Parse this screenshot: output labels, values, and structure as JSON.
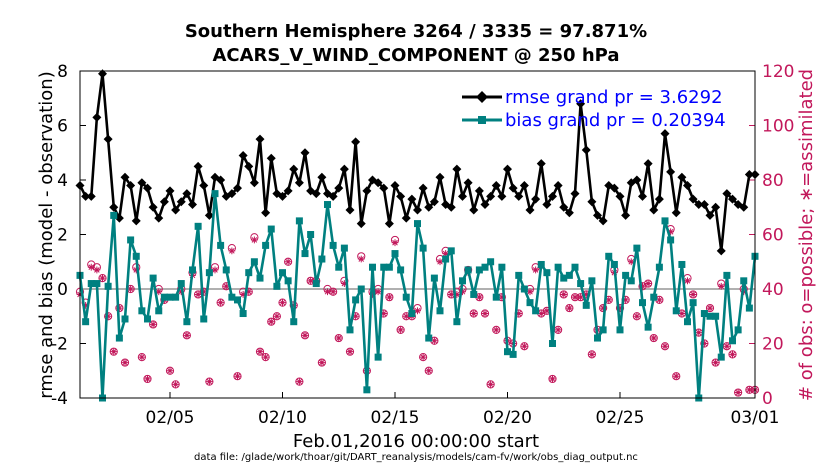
{
  "chart_data": {
    "type": "line",
    "title": "Southern Hemisphere 3264 / 3335 = 97.871%",
    "subtitle": "ACARS_V_WIND_COMPONENT @ 250 hPa",
    "xlabel": "Feb.01,2016 00:00:00 start",
    "ylabel": "rmse and bias (model - observation)",
    "y2label": "# of obs: o=possible; ∗=assimilated",
    "footnote": "data file: /glade/work/thoar/git/DART_reanalysis/models/cam-fv/work/obs_diag_output.nc",
    "xlim": [
      1,
      31
    ],
    "ylim": [
      -4,
      8
    ],
    "y2lim": [
      0,
      120
    ],
    "x_ticks": [
      5,
      10,
      15,
      20,
      25,
      31
    ],
    "x_tick_labels": [
      "02/05",
      "02/10",
      "02/15",
      "02/20",
      "02/25",
      "03/01"
    ],
    "y_ticks": [
      -4,
      -2,
      0,
      2,
      4,
      6,
      8
    ],
    "y_tick_labels": [
      "-4",
      "-2",
      "0",
      "2",
      "4",
      "6",
      "8"
    ],
    "y2_ticks": [
      0,
      20,
      40,
      60,
      80,
      100,
      120
    ],
    "y2_tick_labels": [
      "0",
      "20",
      "40",
      "60",
      "80",
      "100",
      "120"
    ],
    "x": [
      1.0,
      1.25,
      1.5,
      1.75,
      2.0,
      2.25,
      2.5,
      2.75,
      3.0,
      3.25,
      3.5,
      3.75,
      4.0,
      4.25,
      4.5,
      4.75,
      5.0,
      5.25,
      5.5,
      5.75,
      6.0,
      6.25,
      6.5,
      6.75,
      7.0,
      7.25,
      7.5,
      7.75,
      8.0,
      8.25,
      8.5,
      8.75,
      9.0,
      9.25,
      9.5,
      9.75,
      10.0,
      10.25,
      10.5,
      10.75,
      11.0,
      11.25,
      11.5,
      11.75,
      12.0,
      12.25,
      12.5,
      12.75,
      13.0,
      13.25,
      13.5,
      13.75,
      14.0,
      14.25,
      14.5,
      14.75,
      15.0,
      15.25,
      15.5,
      15.75,
      16.0,
      16.25,
      16.5,
      16.75,
      17.0,
      17.25,
      17.5,
      17.75,
      18.0,
      18.25,
      18.5,
      18.75,
      19.0,
      19.25,
      19.5,
      19.75,
      20.0,
      20.25,
      20.5,
      20.75,
      21.0,
      21.25,
      21.5,
      21.75,
      22.0,
      22.25,
      22.5,
      22.75,
      23.0,
      23.25,
      23.5,
      23.75,
      24.0,
      24.25,
      24.5,
      24.75,
      25.0,
      25.25,
      25.5,
      25.75,
      26.0,
      26.25,
      26.5,
      26.75,
      27.0,
      27.25,
      27.5,
      27.75,
      28.0,
      28.25,
      28.5,
      28.75,
      29.0,
      29.25,
      29.5,
      29.75,
      30.0,
      30.25,
      30.5,
      30.75,
      31.0
    ],
    "series": [
      {
        "name": "rmse grand pr = 3.6292",
        "color": "#000000",
        "marker": "diamond",
        "values": [
          3.8,
          3.4,
          3.4,
          6.3,
          7.9,
          5.5,
          3.0,
          2.6,
          4.1,
          3.8,
          2.5,
          3.9,
          3.7,
          3.0,
          2.6,
          3.2,
          3.6,
          2.9,
          3.2,
          3.5,
          3.1,
          4.5,
          3.8,
          2.7,
          4.1,
          4.0,
          3.4,
          3.5,
          3.7,
          4.9,
          4.5,
          3.9,
          5.5,
          2.8,
          4.8,
          3.5,
          3.4,
          3.6,
          4.4,
          3.9,
          5.0,
          3.6,
          3.5,
          4.1,
          3.5,
          3.4,
          3.7,
          4.4,
          2.9,
          5.4,
          2.4,
          3.6,
          4.0,
          3.9,
          3.7,
          2.4,
          3.8,
          3.4,
          2.6,
          3.3,
          2.9,
          3.7,
          3.0,
          3.2,
          4.1,
          3.1,
          3.0,
          4.4,
          3.4,
          3.9,
          2.9,
          3.6,
          3.1,
          3.4,
          3.8,
          3.4,
          4.4,
          3.7,
          3.4,
          3.8,
          2.9,
          3.3,
          4.6,
          3.1,
          3.4,
          3.8,
          3.0,
          2.8,
          3.5,
          6.8,
          5.1,
          3.2,
          2.7,
          2.5,
          3.8,
          3.7,
          3.4,
          2.7,
          3.9,
          4.0,
          3.4,
          4.6,
          2.9,
          3.3,
          5.7,
          4.3,
          2.8,
          4.1,
          3.8,
          3.3,
          3.1,
          3.1,
          2.7,
          3.0,
          1.4,
          3.5,
          3.3,
          3.1,
          3.0,
          4.2,
          4.2
        ]
      },
      {
        "name": "bias grand pr = 0.20394",
        "color": "#008080",
        "marker": "square",
        "values": [
          0.5,
          -1.2,
          0.2,
          0.2,
          -4.0,
          0.1,
          2.7,
          -1.8,
          -1.1,
          1.8,
          1.2,
          -0.8,
          -1.1,
          0.4,
          -0.8,
          -0.3,
          -0.3,
          -0.3,
          0.2,
          -1.2,
          0.7,
          2.3,
          -1.1,
          0.6,
          3.5,
          1.6,
          0.7,
          -0.3,
          -0.4,
          -0.9,
          0.6,
          1.0,
          0.4,
          1.6,
          2.2,
          0.1,
          0.6,
          0.3,
          -1.2,
          2.5,
          1.3,
          2.0,
          0.2,
          1.1,
          3.1,
          1.6,
          0.8,
          1.5,
          -1.5,
          -0.4,
          0.0,
          -3.7,
          0.8,
          -2.5,
          0.8,
          0.8,
          1.3,
          0.7,
          -0.3,
          -0.9,
          2.4,
          1.5,
          -1.8,
          0.4,
          -0.8,
          1.1,
          1.4,
          -1.2,
          0.3,
          0.7,
          -0.2,
          0.7,
          0.8,
          1.0,
          -0.3,
          0.8,
          -2.3,
          -2.4,
          0.5,
          0.0,
          -0.5,
          -0.8,
          0.9,
          0.6,
          -2.0,
          0.8,
          0.4,
          0.5,
          0.8,
          0.2,
          -0.6,
          0.3,
          -1.8,
          -1.5,
          1.2,
          0.9,
          -1.5,
          0.5,
          0.3,
          1.5,
          -0.5,
          -1.4,
          -0.3,
          0.8,
          2.5,
          1.8,
          -0.8,
          0.9,
          -1.2,
          -0.5,
          -4.0,
          -0.9,
          -1.0,
          -1.0,
          -2.5,
          0.5,
          -1.9,
          -1.5,
          0.3,
          -0.7,
          1.2
        ]
      },
      {
        "name": "obs possible",
        "color": "#c2185b",
        "marker": "circle",
        "axis": "right",
        "values": [
          39,
          35,
          49,
          48,
          44,
          30,
          17,
          33,
          13,
          40,
          48,
          15,
          7,
          27,
          40,
          36,
          10,
          5,
          40,
          23,
          46,
          38,
          39,
          6,
          48,
          35,
          41,
          55,
          8,
          39,
          39,
          59,
          17,
          15,
          28,
          30,
          35,
          50,
          34,
          6,
          23,
          43,
          43,
          13,
          40,
          39,
          22,
          43,
          17,
          30,
          52,
          10,
          39,
          40,
          31,
          37,
          58,
          25,
          30,
          30,
          33,
          15,
          10,
          21,
          51,
          54,
          38,
          39,
          40,
          47,
          31,
          37,
          31,
          5,
          25,
          37,
          21,
          20,
          31,
          19,
          40,
          48,
          31,
          32,
          7,
          25,
          38,
          33,
          37,
          37,
          38,
          16,
          25,
          33,
          36,
          47,
          33,
          36,
          51,
          30,
          41,
          42,
          22,
          36,
          19,
          62,
          8,
          31,
          44,
          38,
          24,
          20,
          33,
          13,
          42,
          19,
          16,
          2,
          40,
          3,
          3
        ]
      },
      {
        "name": "obs assimilated",
        "color": "#c2185b",
        "marker": "asterisk",
        "axis": "right",
        "values": [
          38,
          34,
          48,
          47,
          44,
          30,
          17,
          33,
          13,
          40,
          47,
          15,
          7,
          27,
          39,
          36,
          10,
          5,
          39,
          23,
          45,
          38,
          39,
          6,
          47,
          35,
          41,
          54,
          8,
          38,
          39,
          58,
          17,
          15,
          28,
          30,
          35,
          50,
          34,
          6,
          23,
          43,
          42,
          13,
          39,
          39,
          22,
          42,
          17,
          30,
          51,
          10,
          38,
          39,
          31,
          37,
          57,
          25,
          30,
          30,
          32,
          15,
          10,
          21,
          50,
          53,
          38,
          38,
          39,
          46,
          31,
          37,
          31,
          5,
          25,
          37,
          21,
          20,
          31,
          19,
          39,
          47,
          31,
          32,
          7,
          25,
          38,
          33,
          37,
          37,
          38,
          16,
          25,
          33,
          36,
          46,
          33,
          36,
          50,
          30,
          41,
          42,
          22,
          36,
          19,
          61,
          8,
          31,
          43,
          38,
          24,
          20,
          33,
          13,
          41,
          19,
          16,
          2,
          39,
          3,
          3
        ]
      }
    ]
  }
}
